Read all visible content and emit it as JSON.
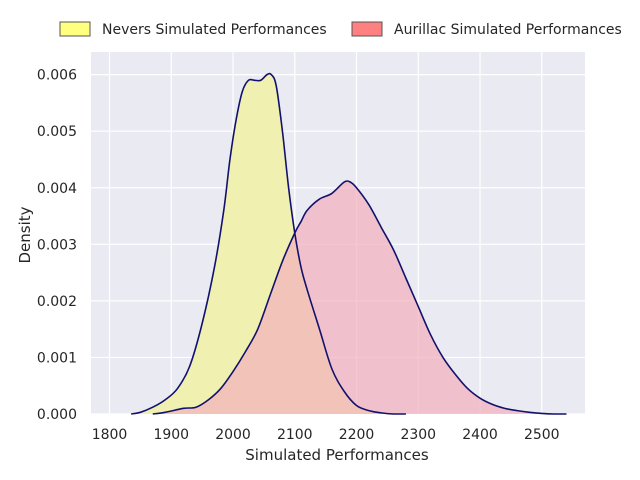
{
  "chart_data": {
    "type": "area",
    "xlabel": "Simulated Performances",
    "ylabel": "Density",
    "xlim": [
      1770,
      2570
    ],
    "ylim": [
      0,
      0.0064
    ],
    "xticks": [
      1800,
      1900,
      2000,
      2100,
      2200,
      2300,
      2400,
      2500
    ],
    "xtick_labels": [
      "1800",
      "1900",
      "2000",
      "2100",
      "2200",
      "2300",
      "2400",
      "2500"
    ],
    "yticks": [
      0,
      0.001,
      0.002,
      0.003,
      0.004,
      0.005,
      0.006
    ],
    "ytick_labels": [
      "0.000",
      "0.001",
      "0.002",
      "0.003",
      "0.004",
      "0.005",
      "0.006"
    ],
    "grid": true,
    "legend_position": "top",
    "series": [
      {
        "name": "Nevers Simulated Performances",
        "fill_color": "#f0f0b0",
        "legend_color": "#ffff80",
        "line_color": "#12126e",
        "x": [
          1835,
          1850,
          1870,
          1890,
          1910,
          1930,
          1950,
          1970,
          1985,
          1995,
          2005,
          2015,
          2025,
          2035,
          2045,
          2055,
          2062,
          2070,
          2080,
          2090,
          2100,
          2110,
          2120,
          2140,
          2160,
          2180,
          2200,
          2220,
          2240,
          2260,
          2280
        ],
        "y": [
          0.0,
          3e-05,
          0.00012,
          0.00025,
          0.00045,
          0.00085,
          0.0016,
          0.0026,
          0.0036,
          0.0045,
          0.0052,
          0.0057,
          0.0059,
          0.0059,
          0.0059,
          0.006,
          0.006,
          0.0058,
          0.005,
          0.004,
          0.0032,
          0.0026,
          0.0022,
          0.0015,
          0.0008,
          0.0004,
          0.00015,
          6e-05,
          2e-05,
          0.0,
          0.0
        ]
      },
      {
        "name": "Aurillac Simulated Performances",
        "fill_color": "#f2b1bd",
        "legend_color": "#ff8080",
        "line_color": "#12126e",
        "x": [
          1870,
          1890,
          1920,
          1940,
          1960,
          1980,
          2000,
          2020,
          2040,
          2060,
          2080,
          2100,
          2110,
          2120,
          2140,
          2160,
          2180,
          2190,
          2200,
          2220,
          2240,
          2260,
          2280,
          2300,
          2320,
          2340,
          2360,
          2380,
          2400,
          2420,
          2440,
          2460,
          2480,
          2500,
          2520,
          2540
        ],
        "y": [
          0.0,
          3e-05,
          0.0001,
          0.00012,
          0.00025,
          0.00045,
          0.00075,
          0.0011,
          0.0015,
          0.0021,
          0.0027,
          0.0032,
          0.0034,
          0.0036,
          0.0038,
          0.0039,
          0.0041,
          0.0041,
          0.004,
          0.0037,
          0.0033,
          0.0029,
          0.0024,
          0.0019,
          0.0014,
          0.001,
          0.0007,
          0.00045,
          0.00028,
          0.00017,
          0.0001,
          6e-05,
          3e-05,
          1e-05,
          0.0,
          0.0
        ]
      }
    ]
  }
}
